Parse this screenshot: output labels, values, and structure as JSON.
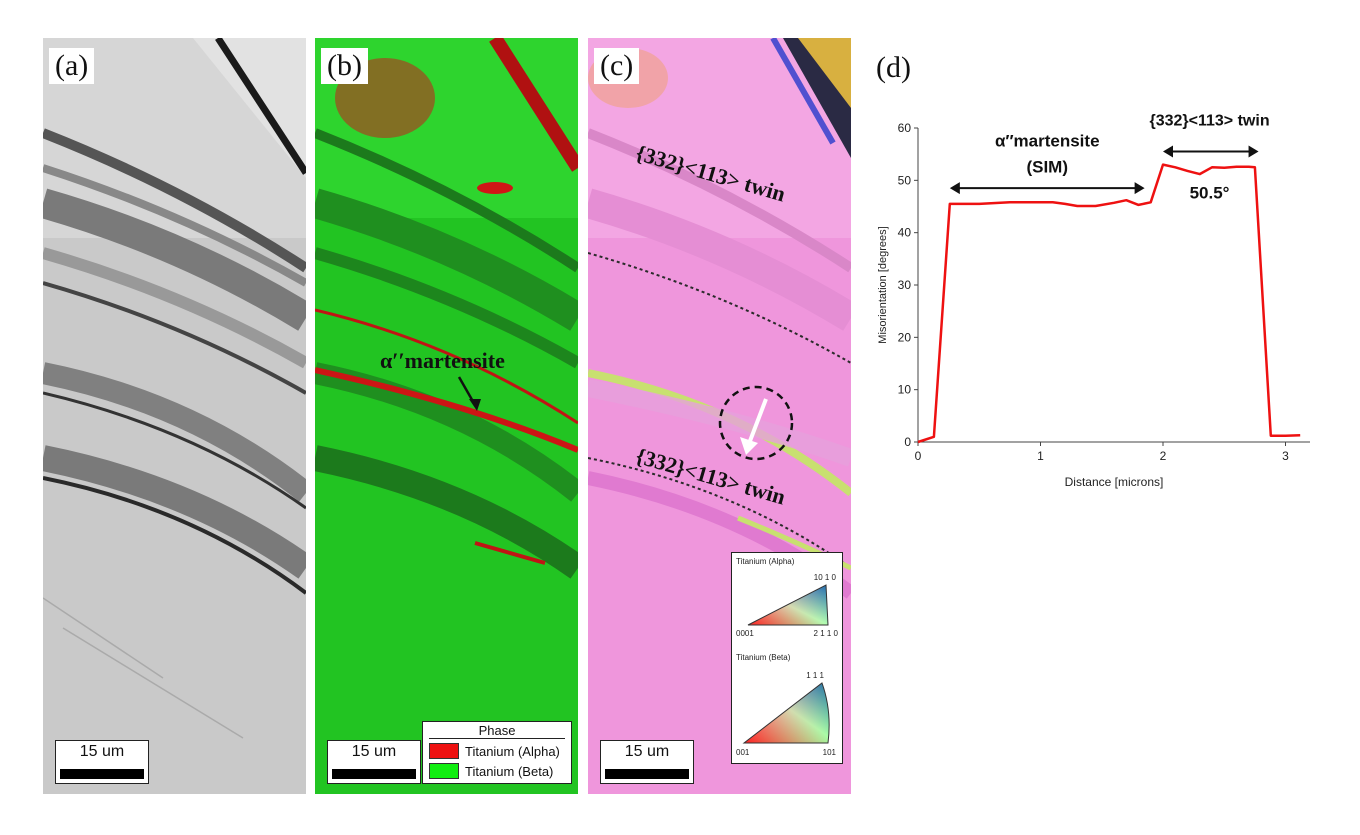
{
  "panels": {
    "a": {
      "label": "(a)",
      "scalebar": "15 um"
    },
    "b": {
      "label": "(b)",
      "scalebar": "15 um",
      "annotation": "α′′martensite",
      "legend": {
        "title": "Phase",
        "items": [
          {
            "label": "Titanium (Alpha)",
            "color": "#ee1111"
          },
          {
            "label": "Titanium (Beta)",
            "color": "#11ee11"
          }
        ]
      }
    },
    "c": {
      "label": "(c)",
      "scalebar": "15 um",
      "twin_top": "{332}<113> twin",
      "twin_bottom": "{332}<113> twin",
      "ipf": {
        "alpha_title": "Titanium (Alpha)",
        "alpha_corner_top": "10 1 0",
        "alpha_corner_left": "0001",
        "alpha_corner_right": "2 1 1 0",
        "beta_title": "Titanium (Beta)",
        "beta_corner_top": "1 1 1",
        "beta_corner_left": "001",
        "beta_corner_right": "101"
      }
    },
    "d": {
      "label": "(d)"
    }
  },
  "chart_annotations": {
    "martensite_line1": "α′′martensite",
    "martensite_line2": "(SIM)",
    "twin": "{332}<113> twin",
    "angle": "50.5°"
  },
  "chart_data": {
    "type": "line",
    "xlabel": "Distance [microns]",
    "ylabel": "Misorientation [degrees]",
    "xlim": [
      0,
      3.2
    ],
    "ylim": [
      0,
      60
    ],
    "xticks": [
      0,
      1,
      2,
      3
    ],
    "yticks": [
      0,
      10,
      20,
      30,
      40,
      50,
      60
    ],
    "grid": false,
    "series": [
      {
        "color": "#ee1111",
        "x": [
          0,
          0.13,
          0.26,
          0.5,
          0.75,
          1.0,
          1.1,
          1.2,
          1.3,
          1.45,
          1.6,
          1.7,
          1.8,
          1.9,
          2.0,
          2.1,
          2.2,
          2.3,
          2.4,
          2.5,
          2.6,
          2.7,
          2.75,
          2.88,
          3.0,
          3.12
        ],
        "y": [
          0,
          1,
          45.5,
          45.5,
          45.8,
          45.8,
          45.8,
          45.5,
          45.1,
          45.1,
          45.7,
          46.2,
          45.3,
          45.8,
          53.0,
          52.5,
          51.8,
          51.2,
          52.5,
          52.4,
          52.6,
          52.6,
          52.5,
          1.2,
          1.2,
          1.3
        ]
      }
    ]
  }
}
